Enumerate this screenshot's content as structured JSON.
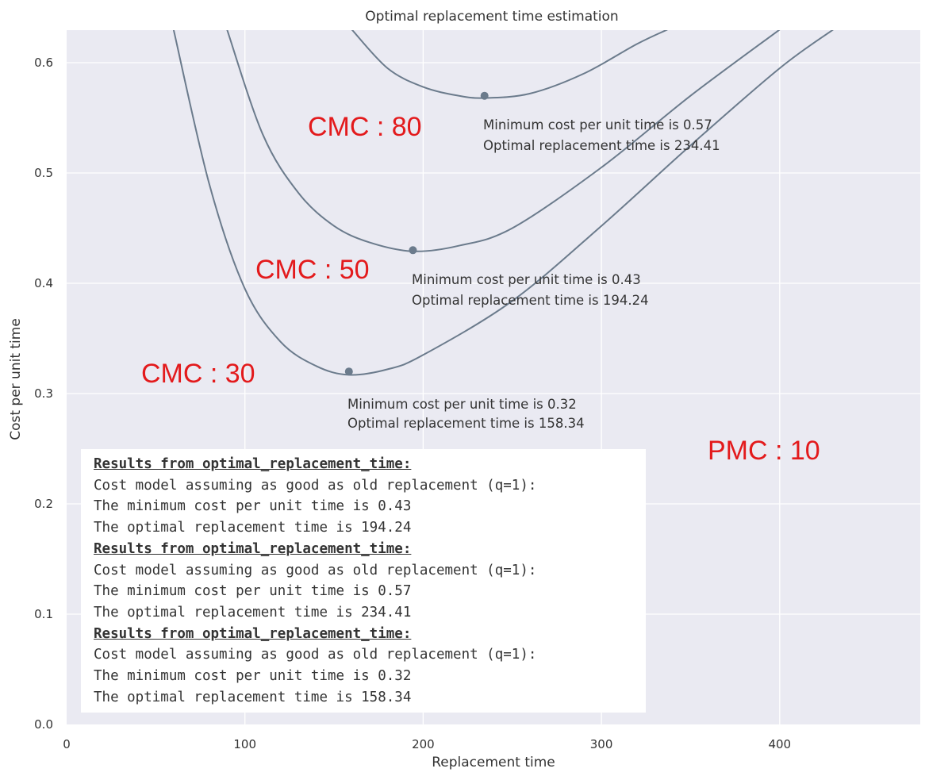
{
  "chart_data": {
    "type": "line",
    "title": "Optimal replacement time estimation",
    "xlabel": "Replacement time",
    "ylabel": "Cost per unit time",
    "xlim": [
      0,
      480
    ],
    "ylim": [
      0,
      0.63
    ],
    "x_ticks": [
      "0",
      "100",
      "200",
      "300",
      "400"
    ],
    "y_ticks": [
      "0.0",
      "0.1",
      "0.2",
      "0.3",
      "0.4",
      "0.5",
      "0.6"
    ],
    "grid": true,
    "line_color": "#6b7b8c",
    "background_color": "#eaeaf2",
    "label_color": "#e31a1c",
    "series": [
      {
        "name": "CMC : 30",
        "x": [
          60,
          80,
          100,
          120,
          140,
          158.34,
          180,
          200,
          250,
          300,
          350,
          400,
          430
        ],
        "y": [
          0.63,
          0.49,
          0.395,
          0.347,
          0.325,
          0.317,
          0.322,
          0.335,
          0.384,
          0.452,
          0.525,
          0.595,
          0.63
        ],
        "minimum": {
          "x": 158.34,
          "y": 0.32
        }
      },
      {
        "name": "CMC : 50",
        "x": [
          90,
          110,
          130,
          150,
          170,
          194.24,
          220,
          250,
          300,
          350,
          400
        ],
        "y": [
          0.63,
          0.535,
          0.482,
          0.452,
          0.437,
          0.429,
          0.434,
          0.45,
          0.505,
          0.57,
          0.63
        ],
        "minimum": {
          "x": 194.24,
          "y": 0.43
        }
      },
      {
        "name": "CMC : 80",
        "x": [
          160,
          180,
          200,
          220,
          234.41,
          260,
          290,
          320,
          337
        ],
        "y": [
          0.63,
          0.595,
          0.578,
          0.57,
          0.568,
          0.572,
          0.59,
          0.617,
          0.63
        ],
        "minimum": {
          "x": 234.41,
          "y": 0.57
        }
      }
    ],
    "annotations": [
      {
        "line1": "Minimum cost per unit time is 0.57",
        "line2": "Optimal replacement time is 234.41"
      },
      {
        "line1": "Minimum cost per unit time is 0.43",
        "line2": "Optimal replacement time is 194.24"
      },
      {
        "line1": "Minimum cost per unit time is 0.32",
        "line2": "Optimal replacement time is 158.34"
      }
    ],
    "overlay_labels": [
      "CMC : 80",
      "CMC : 50",
      "CMC : 30",
      "PMC : 10"
    ]
  },
  "results": [
    {
      "header": "Results from optimal_replacement_time:",
      "model": "Cost model assuming as good as old replacement (q=1):",
      "min_cost": "The minimum cost per unit time is 0.43",
      "opt_time": "The optimal replacement time is 194.24"
    },
    {
      "header": "Results from optimal_replacement_time:",
      "model": "Cost model assuming as good as old replacement (q=1):",
      "min_cost": "The minimum cost per unit time is 0.57",
      "opt_time": "The optimal replacement time is 234.41"
    },
    {
      "header": "Results from optimal_replacement_time:",
      "model": "Cost model assuming as good as old replacement (q=1):",
      "min_cost": "The minimum cost per unit time is 0.32",
      "opt_time": "The optimal replacement time is 158.34"
    }
  ]
}
